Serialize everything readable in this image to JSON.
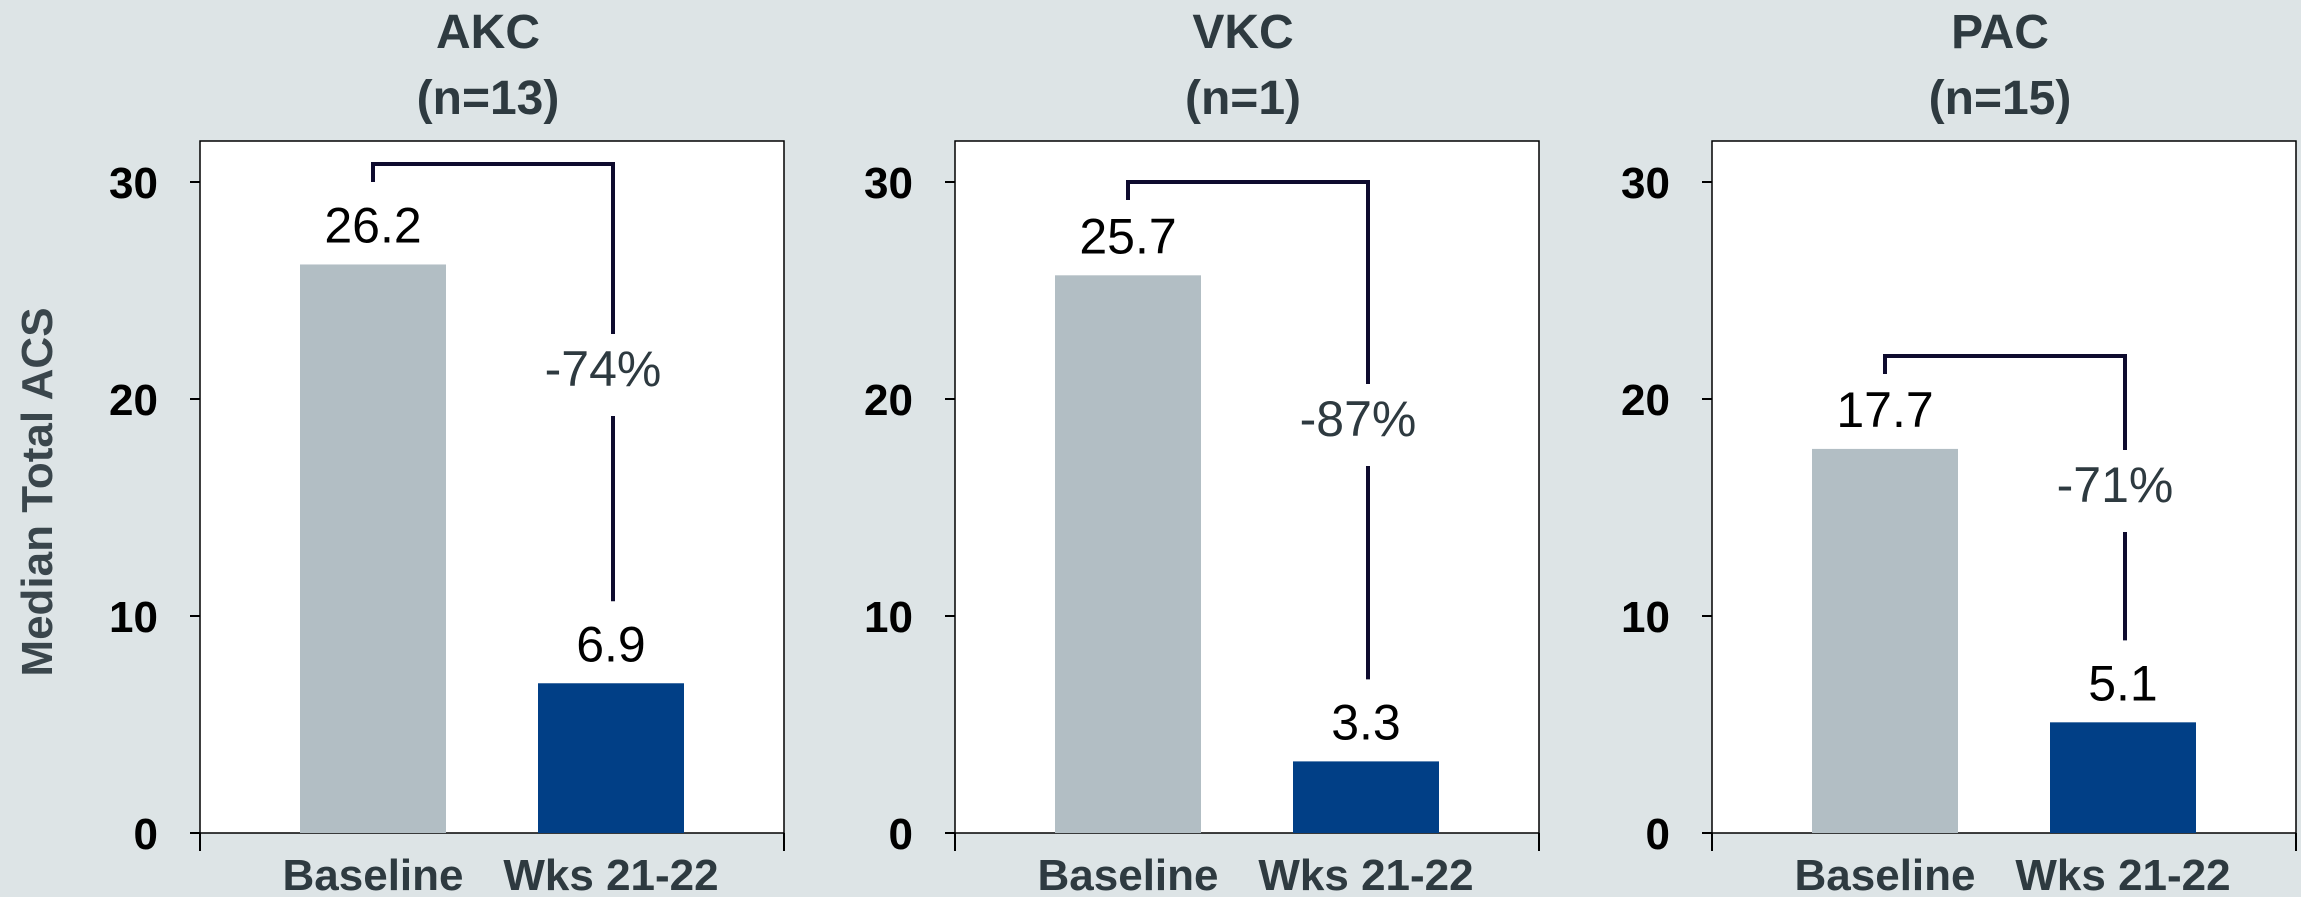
{
  "ylabel": "Median Total ACS",
  "chart_data": [
    {
      "type": "bar",
      "title": "AKC",
      "subtitle": "(n=13)",
      "categories": [
        "Baseline",
        "Wks 21-22"
      ],
      "values": [
        26.2,
        6.9
      ],
      "data_labels": [
        "26.2",
        "6.9"
      ],
      "change_label": "-74%",
      "ylim": [
        0,
        30
      ],
      "yticks": [
        "0",
        "10",
        "20",
        "30"
      ],
      "colors": [
        "#b2bec4",
        "#013f86"
      ]
    },
    {
      "type": "bar",
      "title": "VKC",
      "subtitle": "(n=1)",
      "categories": [
        "Baseline",
        "Wks 21-22"
      ],
      "values": [
        25.7,
        3.3
      ],
      "data_labels": [
        "25.7",
        "3.3"
      ],
      "change_label": "-87%",
      "ylim": [
        0,
        30
      ],
      "yticks": [
        "0",
        "10",
        "20",
        "30"
      ],
      "colors": [
        "#b2bec4",
        "#013f86"
      ]
    },
    {
      "type": "bar",
      "title": "PAC",
      "subtitle": "(n=15)",
      "categories": [
        "Baseline",
        "Wks 21-22"
      ],
      "values": [
        17.7,
        5.1
      ],
      "data_labels": [
        "17.7",
        "5.1"
      ],
      "change_label": "-71%",
      "ylim": [
        0,
        30
      ],
      "yticks": [
        "0",
        "10",
        "20",
        "30"
      ],
      "colors": [
        "#b2bec4",
        "#013f86"
      ]
    }
  ]
}
